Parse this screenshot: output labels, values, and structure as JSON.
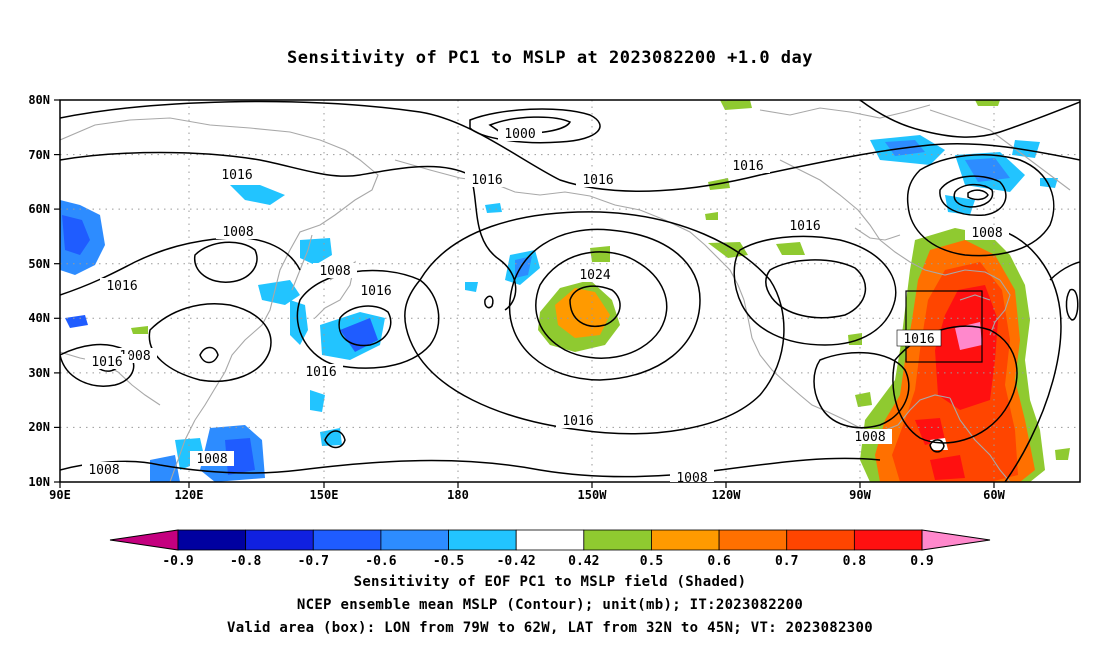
{
  "title": "Sensitivity of PC1 to MSLP at 2023082200 +1.0 day",
  "map": {
    "lat_labels": [
      "80N",
      "70N",
      "60N",
      "50N",
      "40N",
      "30N",
      "20N",
      "10N"
    ],
    "lon_labels": [
      "90E",
      "120E",
      "150E",
      "180",
      "150W",
      "120W",
      "90W",
      "60W"
    ],
    "lat_range": [
      10,
      80
    ],
    "lon_range_east_deg": [
      90,
      327
    ],
    "grid": "dotted",
    "valid_box": {
      "lon": [
        "79W",
        "62W"
      ],
      "lat": [
        "32N",
        "45N"
      ]
    },
    "contour_labels": [
      "1000",
      "1016",
      "1016",
      "1016",
      "1016",
      "1008",
      "1016",
      "1008",
      "1016",
      "1008",
      "1016",
      "1016",
      "1024",
      "1008",
      "1016",
      "1016",
      "1008",
      "1008",
      "1008",
      "1008"
    ]
  },
  "colorbar": {
    "labels": [
      "-0.9",
      "-0.8",
      "-0.7",
      "-0.6",
      "-0.5",
      "-0.42",
      "0.42",
      "0.5",
      "0.6",
      "0.7",
      "0.8",
      "0.9"
    ],
    "colors": [
      "#c4007f",
      "#0000a0",
      "#1020e0",
      "#1f5cff",
      "#2d8cff",
      "#22c4ff",
      "#ffffff",
      "#8fca30",
      "#ff9a00",
      "#ff7000",
      "#ff4500",
      "#ff1010",
      "#ff88cc"
    ]
  },
  "captions": [
    "Sensitivity of EOF PC1 to MSLP field (Shaded)",
    "NCEP ensemble mean MSLP (Contour); unit(mb); IT:2023082200",
    "Valid area (box): LON from 79W to 62W, LAT from 32N to 45N; VT: 2023082300"
  ]
}
